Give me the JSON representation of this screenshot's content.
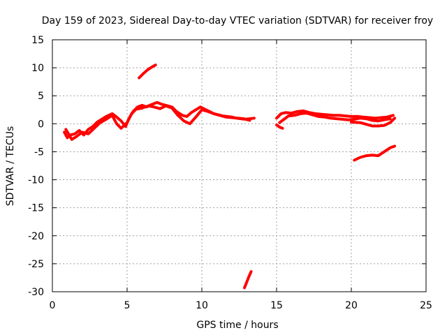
{
  "chart_data": {
    "type": "line",
    "title": "Day 159 of 2023, Sidereal Day-to-day VTEC variation (SDTVAR) for receiver froy",
    "xlabel": "GPS time / hours",
    "ylabel": "SDTVAR / TECUs",
    "xlim": [
      0,
      25
    ],
    "ylim": [
      -30,
      15
    ],
    "xticks": [
      0,
      5,
      10,
      15,
      20,
      25
    ],
    "yticks": [
      -30,
      -25,
      -20,
      -15,
      -10,
      -5,
      0,
      5,
      10,
      15
    ],
    "xtick_labels": [
      "0",
      "5",
      "10",
      "15",
      "20",
      "25"
    ],
    "ytick_labels": [
      "-30",
      "-25",
      "-20",
      "-15",
      "-10",
      "-5",
      "0",
      "5",
      "10",
      "15"
    ],
    "grid": true,
    "series_color": "#ff0000",
    "series": [
      {
        "name": "main-track-1",
        "x": [
          0.8,
          1.0,
          1.2,
          1.5,
          1.8,
          2.1,
          2.4,
          2.7,
          3.0,
          3.3,
          3.6,
          4.0,
          4.3,
          4.6,
          4.9,
          5.1,
          5.4,
          5.7,
          6.0,
          6.3,
          6.6,
          7.0,
          7.3,
          7.6,
          8.0,
          8.3,
          8.7,
          9.0,
          9.3,
          9.6,
          9.9,
          10.2,
          10.5,
          10.8,
          11.1,
          11.4,
          11.7,
          12.0,
          12.3,
          12.6,
          12.9,
          13.2,
          13.5
        ],
        "y": [
          -1.5,
          -2.5,
          -2.0,
          -1.8,
          -1.2,
          -2.0,
          -1.0,
          -0.5,
          0.3,
          0.8,
          1.3,
          1.8,
          1.2,
          0.5,
          -0.5,
          0.8,
          2.2,
          3.0,
          3.3,
          3.0,
          3.4,
          3.8,
          3.5,
          3.3,
          3.0,
          2.2,
          1.5,
          1.3,
          2.0,
          2.5,
          3.0,
          2.6,
          2.2,
          1.8,
          1.6,
          1.4,
          1.3,
          1.2,
          1.0,
          0.9,
          0.8,
          0.9,
          1.0
        ]
      },
      {
        "name": "main-track-2",
        "x": [
          0.9,
          1.3,
          1.6,
          2.0,
          2.4,
          2.8,
          3.2,
          3.6,
          4.0,
          4.3,
          4.6,
          5.0,
          5.3,
          5.6,
          6.0,
          6.4,
          6.8,
          7.2,
          7.6,
          8.0,
          8.4,
          8.8,
          9.2,
          9.6,
          10.0,
          10.4,
          10.8,
          11.2,
          11.6,
          12.0,
          12.4,
          12.8,
          13.2
        ],
        "y": [
          -1.0,
          -2.8,
          -2.3,
          -1.5,
          -1.8,
          -0.8,
          0.2,
          0.8,
          1.5,
          0.0,
          -0.8,
          0.2,
          1.8,
          2.6,
          2.8,
          3.2,
          3.0,
          2.7,
          3.2,
          2.8,
          1.5,
          0.5,
          0.0,
          1.2,
          2.5,
          2.2,
          1.8,
          1.5,
          1.2,
          1.1,
          1.0,
          0.9,
          0.6
        ]
      },
      {
        "name": "main-track-3",
        "x": [
          15.0,
          15.3,
          15.6,
          16.0,
          16.4,
          16.8,
          17.2,
          17.6,
          18.0,
          18.4,
          18.8,
          19.2,
          19.6,
          20.0,
          20.4,
          20.8,
          21.2,
          21.6,
          22.0,
          22.4,
          22.8
        ],
        "y": [
          1.0,
          1.8,
          2.0,
          1.9,
          2.2,
          2.3,
          2.0,
          1.8,
          1.7,
          1.6,
          1.5,
          1.5,
          1.4,
          1.3,
          1.3,
          1.2,
          1.1,
          1.0,
          1.1,
          1.2,
          1.5
        ]
      },
      {
        "name": "main-track-4",
        "x": [
          15.2,
          15.5,
          15.8,
          16.2,
          16.6,
          17.0,
          17.4,
          17.8,
          18.2,
          18.6,
          19.0,
          19.4,
          19.8,
          20.2,
          20.6,
          21.0,
          21.4,
          21.8,
          22.2,
          22.6
        ],
        "y": [
          0.2,
          0.8,
          1.4,
          1.5,
          1.8,
          1.9,
          1.6,
          1.3,
          1.2,
          1.0,
          0.9,
          0.8,
          0.7,
          0.8,
          1.0,
          0.9,
          0.6,
          0.5,
          0.7,
          0.9
        ]
      },
      {
        "name": "track-20h",
        "x": [
          20.0,
          20.6,
          21.0,
          21.4,
          21.8,
          22.2,
          22.6,
          22.9
        ],
        "y": [
          0.3,
          0.2,
          -0.1,
          -0.4,
          -0.4,
          -0.3,
          0.2,
          1.0
        ]
      },
      {
        "name": "lower-track",
        "x": [
          20.2,
          20.6,
          21.0,
          21.4,
          21.8,
          22.2,
          22.6,
          22.9
        ],
        "y": [
          -6.5,
          -6.0,
          -5.7,
          -5.6,
          -5.7,
          -5.0,
          -4.3,
          -4.0
        ]
      },
      {
        "name": "upper-track",
        "x": [
          5.8,
          6.1,
          6.4,
          6.7,
          6.9
        ],
        "y": [
          8.2,
          9.0,
          9.7,
          10.2,
          10.5
        ]
      },
      {
        "name": "low-outlier-track",
        "x": [
          12.85,
          13.0,
          13.15,
          13.3
        ],
        "y": [
          -29.3,
          -28.3,
          -27.3,
          -26.4
        ]
      },
      {
        "name": "short-segment",
        "x": [
          15.0,
          15.2,
          15.4
        ],
        "y": [
          -0.2,
          -0.6,
          -0.8
        ]
      }
    ]
  }
}
